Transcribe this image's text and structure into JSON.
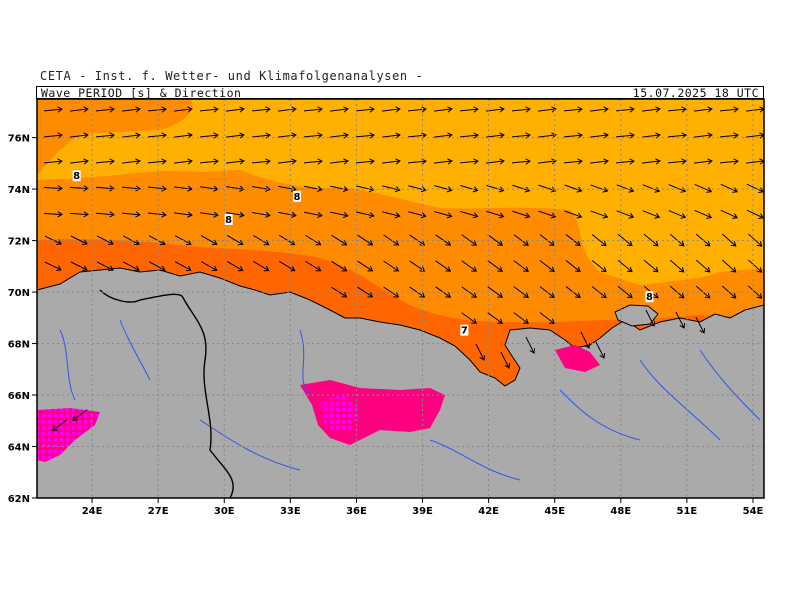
{
  "header": {
    "institute": "CETA - Inst. f. Wetter- und Klimafolgenanalysen -",
    "title": "Wave PERIOD [s] & Direction",
    "datetime": "15.07.2025 18 UTC"
  },
  "map": {
    "lon_range": [
      21.5,
      54.5
    ],
    "lat_range": [
      62,
      77.5
    ],
    "lat_ticks": [
      "76N",
      "74N",
      "72N",
      "70N",
      "68N",
      "66N",
      "64N",
      "62N"
    ],
    "lon_ticks": [
      "24E",
      "27E",
      "30E",
      "33E",
      "36E",
      "39E",
      "42E",
      "45E",
      "48E",
      "51E",
      "54E"
    ],
    "contour_labels": [
      {
        "text": "8",
        "lon": 23.3,
        "lat": 74.5
      },
      {
        "text": "8",
        "lon": 33.3,
        "lat": 73.7
      },
      {
        "text": "8",
        "lon": 30.2,
        "lat": 72.8
      },
      {
        "text": "8",
        "lon": 49.3,
        "lat": 69.8
      },
      {
        "text": "7",
        "lon": 40.9,
        "lat": 68.5
      }
    ],
    "colors": {
      "land": "#aaaaaa",
      "sea_lt7": "#ff6600",
      "sea_7_8": "#ff8c00",
      "sea_8_9": "#ffb000",
      "sea_short": "#ff0080",
      "sea_vshort": "#ff00ff",
      "rivers": "#3355ee",
      "arrows": "#000000"
    },
    "wave_direction": "arrows pointing east in north, south-east toward White Sea / Pechora coast"
  }
}
